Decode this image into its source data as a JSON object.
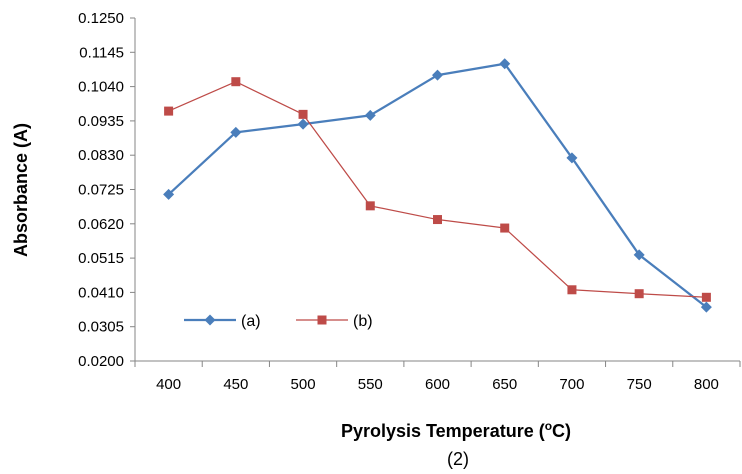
{
  "chart_data": {
    "type": "line",
    "x": [
      400,
      450,
      500,
      550,
      600,
      650,
      700,
      750,
      800
    ],
    "series": [
      {
        "name": "(a)",
        "color": "#4a7ebb",
        "marker": "diamond",
        "values": [
          0.071,
          0.09,
          0.0925,
          0.0952,
          0.1075,
          0.111,
          0.0822,
          0.0525,
          0.0365
        ]
      },
      {
        "name": "(b)",
        "color": "#be4b48",
        "marker": "square",
        "values": [
          0.0965,
          0.1055,
          0.0955,
          0.0675,
          0.0633,
          0.0607,
          0.0418,
          0.0406,
          0.0395
        ]
      }
    ],
    "xlabel_main": "Pyrolysis Temperature (",
    "xlabel_sup": "o",
    "xlabel_end": "C)",
    "ylabel": "Absorbance (A)",
    "caption": "(2)",
    "ylim": [
      0.02,
      0.125
    ],
    "yticks": [
      "0.0200",
      "0.0305",
      "0.0410",
      "0.0515",
      "0.0620",
      "0.0725",
      "0.0830",
      "0.0935",
      "0.1040",
      "0.1145",
      "0.1250"
    ],
    "xticks": [
      "400",
      "450",
      "500",
      "550",
      "600",
      "650",
      "700",
      "750",
      "800"
    ],
    "grid": false,
    "legend_position": "bottom-left"
  }
}
